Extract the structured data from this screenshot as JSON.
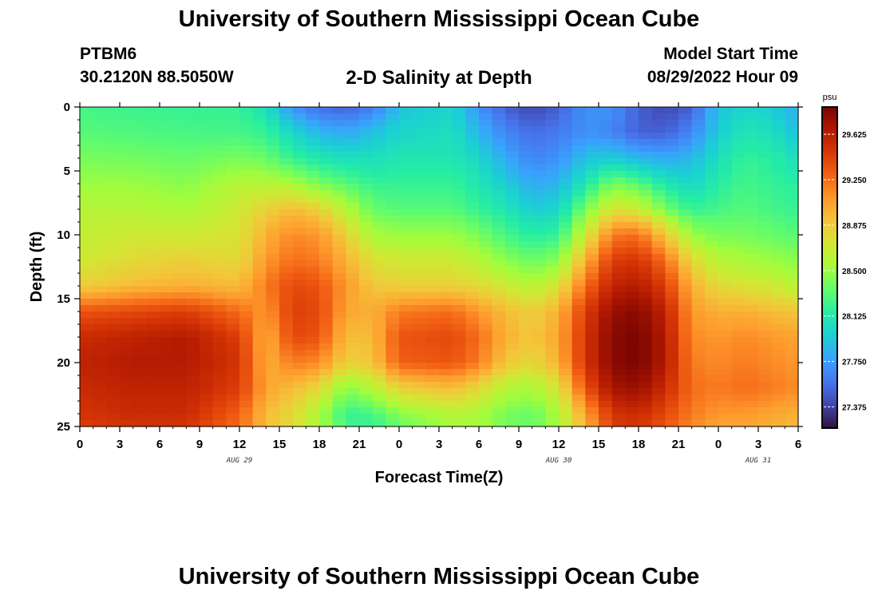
{
  "page": {
    "title": "University of Southern Mississippi Ocean Cube",
    "station": "PTBM6",
    "coords": "30.2120N  88.5050W",
    "plot_title": "2-D Salinity at Depth",
    "model_start_label": "Model Start Time",
    "model_start_value": "08/29/2022 Hour 09",
    "footer_title": "University of Southern Mississippi Ocean Cube"
  },
  "chart_data": {
    "type": "heatmap",
    "title": "2-D Salinity at Depth",
    "xlabel": "Forecast Time(Z)",
    "ylabel": "Depth (ft)",
    "xlim": [
      0,
      54
    ],
    "ylim": [
      0,
      25
    ],
    "y_inverted": true,
    "x_ticks": [
      {
        "x": 0,
        "label": "0"
      },
      {
        "x": 3,
        "label": "3"
      },
      {
        "x": 6,
        "label": "6"
      },
      {
        "x": 9,
        "label": "9"
      },
      {
        "x": 12,
        "label": "12"
      },
      {
        "x": 15,
        "label": "15"
      },
      {
        "x": 18,
        "label": "18"
      },
      {
        "x": 21,
        "label": "21"
      },
      {
        "x": 24,
        "label": "0"
      },
      {
        "x": 27,
        "label": "3"
      },
      {
        "x": 30,
        "label": "6"
      },
      {
        "x": 33,
        "label": "9"
      },
      {
        "x": 36,
        "label": "12"
      },
      {
        "x": 39,
        "label": "15"
      },
      {
        "x": 42,
        "label": "18"
      },
      {
        "x": 45,
        "label": "21"
      },
      {
        "x": 48,
        "label": "0"
      },
      {
        "x": 51,
        "label": "3"
      },
      {
        "x": 54,
        "label": "6"
      }
    ],
    "y_ticks": [
      0,
      5,
      10,
      15,
      20,
      25
    ],
    "date_labels": [
      {
        "x": 12,
        "label": "AUG 29"
      },
      {
        "x": 36,
        "label": "AUG 30"
      },
      {
        "x": 51,
        "label": "AUG 31"
      }
    ],
    "colorbar": {
      "unit": "psu",
      "min": 27.2,
      "max": 29.85,
      "ticks": [
        "29.625",
        "29.250",
        "28.875",
        "28.500",
        "28.125",
        "27.750",
        "27.375"
      ],
      "colors": [
        "#30123b",
        "#4145ab",
        "#4675ed",
        "#39a2fc",
        "#1bcfd4",
        "#24eca6",
        "#61fc6c",
        "#a4fc3b",
        "#d1e834",
        "#f3c63a",
        "#fe9b2d",
        "#f36315",
        "#d93806",
        "#b11901",
        "#7a0402"
      ]
    },
    "grid": {
      "x_step_hours": 1,
      "y_step_ft": 0.5,
      "depth_rows": [
        0,
        2,
        4,
        6,
        8,
        10,
        12,
        14,
        16,
        18,
        20,
        22,
        24,
        25
      ],
      "time_columns": [
        0,
        4,
        8,
        12,
        14,
        16,
        18,
        20,
        22,
        24,
        28,
        30,
        32,
        34,
        36,
        38,
        40,
        42,
        44,
        46,
        48,
        50,
        52,
        54
      ],
      "values": [
        [
          28.25,
          28.22,
          28.2,
          28.2,
          28.05,
          27.7,
          27.55,
          27.5,
          27.6,
          27.9,
          28.0,
          27.7,
          27.5,
          27.4,
          27.5,
          27.7,
          27.7,
          27.5,
          27.4,
          27.5,
          27.9,
          28.0,
          27.95,
          27.8
        ],
        [
          28.3,
          28.28,
          28.26,
          28.25,
          28.2,
          28.0,
          27.85,
          27.8,
          27.9,
          28.0,
          28.05,
          27.85,
          27.65,
          27.55,
          27.6,
          27.7,
          27.65,
          27.5,
          27.5,
          27.65,
          27.95,
          28.1,
          28.05,
          27.9
        ],
        [
          28.4,
          28.38,
          28.35,
          28.4,
          28.35,
          28.2,
          28.1,
          28.05,
          28.05,
          28.1,
          28.1,
          28.0,
          27.8,
          27.65,
          27.7,
          27.9,
          27.95,
          27.85,
          27.8,
          27.85,
          28.05,
          28.2,
          28.15,
          28.05
        ],
        [
          28.5,
          28.5,
          28.45,
          28.6,
          28.6,
          28.55,
          28.4,
          28.3,
          28.2,
          28.2,
          28.2,
          28.1,
          27.95,
          27.8,
          27.85,
          28.1,
          28.4,
          28.3,
          28.1,
          28.0,
          28.15,
          28.25,
          28.2,
          28.15
        ],
        [
          28.6,
          28.6,
          28.55,
          28.7,
          28.85,
          28.95,
          28.85,
          28.6,
          28.35,
          28.3,
          28.3,
          28.2,
          28.1,
          27.95,
          28.0,
          28.4,
          28.75,
          28.7,
          28.4,
          28.2,
          28.25,
          28.3,
          28.25,
          28.2
        ],
        [
          28.65,
          28.7,
          28.7,
          28.75,
          29.0,
          29.15,
          29.1,
          28.85,
          28.55,
          28.5,
          28.5,
          28.4,
          28.25,
          28.15,
          28.2,
          28.7,
          29.2,
          29.25,
          28.9,
          28.5,
          28.4,
          28.4,
          28.35,
          28.3
        ],
        [
          28.7,
          28.8,
          28.85,
          28.8,
          29.1,
          29.25,
          29.2,
          29.0,
          28.75,
          28.7,
          28.7,
          28.6,
          28.45,
          28.35,
          28.45,
          29.0,
          29.45,
          29.5,
          29.25,
          28.8,
          28.6,
          28.55,
          28.5,
          28.45
        ],
        [
          28.85,
          28.95,
          29.0,
          28.95,
          29.2,
          29.4,
          29.35,
          29.1,
          28.9,
          28.85,
          28.85,
          28.8,
          28.7,
          28.6,
          28.75,
          29.25,
          29.6,
          29.65,
          29.45,
          29.0,
          28.8,
          28.75,
          28.7,
          28.6
        ],
        [
          29.35,
          29.4,
          29.45,
          29.25,
          29.1,
          29.45,
          29.4,
          29.05,
          29.0,
          29.2,
          29.25,
          29.1,
          28.95,
          28.85,
          29.0,
          29.45,
          29.75,
          29.8,
          29.6,
          29.1,
          29.0,
          29.0,
          28.95,
          28.9
        ],
        [
          29.55,
          29.6,
          29.65,
          29.45,
          29.0,
          29.4,
          29.35,
          28.95,
          28.95,
          29.35,
          29.4,
          29.25,
          29.0,
          28.9,
          29.05,
          29.5,
          29.8,
          29.85,
          29.65,
          29.15,
          29.1,
          29.15,
          29.1,
          29.05
        ],
        [
          29.6,
          29.65,
          29.65,
          29.5,
          29.0,
          29.2,
          29.15,
          28.85,
          28.9,
          29.3,
          29.35,
          29.2,
          28.9,
          28.8,
          29.0,
          29.5,
          29.8,
          29.85,
          29.65,
          29.2,
          29.15,
          29.2,
          29.15,
          29.1
        ],
        [
          29.55,
          29.6,
          29.6,
          29.45,
          29.05,
          28.95,
          28.8,
          28.45,
          28.6,
          28.85,
          28.95,
          28.8,
          28.6,
          28.55,
          28.75,
          29.35,
          29.7,
          29.75,
          29.55,
          29.25,
          29.2,
          29.25,
          29.2,
          29.15
        ],
        [
          29.5,
          29.55,
          29.55,
          29.3,
          28.95,
          28.8,
          28.55,
          28.2,
          28.25,
          28.45,
          28.6,
          28.55,
          28.4,
          28.35,
          28.55,
          29.05,
          29.5,
          29.55,
          29.4,
          29.2,
          29.1,
          29.1,
          29.05,
          29.0
        ],
        [
          29.45,
          29.5,
          29.5,
          29.25,
          28.95,
          28.8,
          28.55,
          28.25,
          28.2,
          28.35,
          28.55,
          28.55,
          28.4,
          28.35,
          28.55,
          29.0,
          29.45,
          29.5,
          29.35,
          29.15,
          29.05,
          29.05,
          29.0,
          28.95
        ]
      ]
    }
  }
}
